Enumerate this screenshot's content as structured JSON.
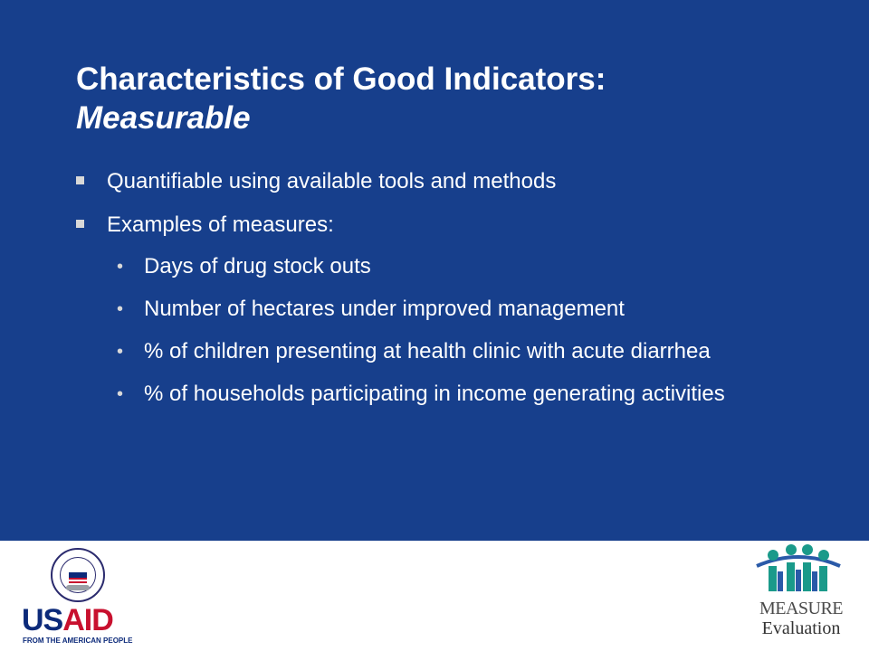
{
  "slide": {
    "background": "#173F8C",
    "title_line1": "Characteristics of Good Indicators:",
    "title_line2": "Measurable",
    "bullets": [
      {
        "text": "Quantifiable using available tools and methods"
      },
      {
        "text": "Examples of measures:",
        "sub": [
          "Days of drug stock outs",
          "Number of hectares under improved management",
          "% of children presenting at health clinic with acute diarrhea",
          "% of households participating in income generating activities"
        ]
      }
    ]
  },
  "footer": {
    "usaid": {
      "word_us": "US",
      "word_aid": "AID",
      "tagline": "FROM THE AMERICAN PEOPLE",
      "seal_icon": "usaid-seal-icon",
      "colors": {
        "blue": "#0c2a7a",
        "red": "#c8102e"
      }
    },
    "measure": {
      "name": "MEASURE",
      "sub": "Evaluation",
      "people_icon": "people-figures-icon",
      "colors": {
        "teal": "#1a9a8a",
        "blue": "#2a5aa8"
      }
    }
  }
}
